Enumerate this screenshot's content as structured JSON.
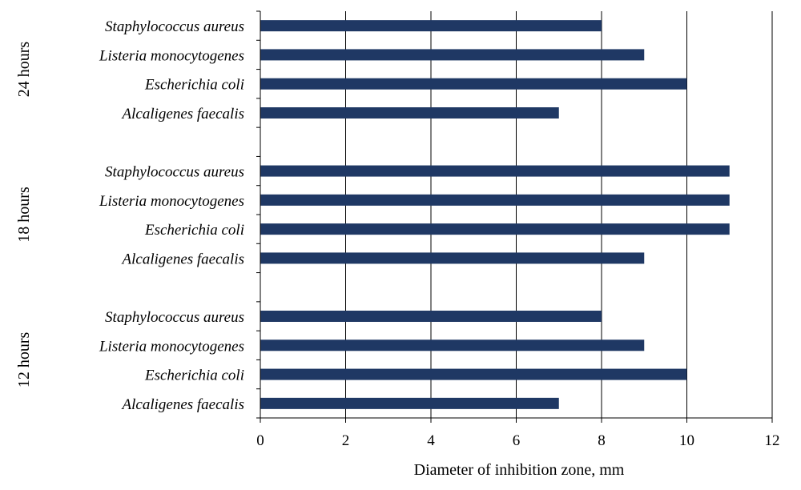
{
  "chart_data": {
    "type": "bar",
    "orientation": "horizontal",
    "xlabel": "Diameter of inhibition zone, mm",
    "xlim": [
      0,
      12
    ],
    "xticks": [
      0,
      2,
      4,
      6,
      8,
      10,
      12
    ],
    "grid": "vertical",
    "bar_color": "#1f3864",
    "groups": [
      {
        "label": "24 hours",
        "categories": [
          "Staphylococcus aureus",
          "Listeria monocytogenes",
          "Escherichia coli",
          "Alcaligenes faecalis"
        ],
        "values": [
          8,
          9,
          10,
          7
        ]
      },
      {
        "label": "18 hours",
        "categories": [
          "Staphylococcus aureus",
          "Listeria monocytogenes",
          "Escherichia coli",
          "Alcaligenes faecalis"
        ],
        "values": [
          11,
          11,
          11,
          9
        ]
      },
      {
        "label": "12 hours",
        "categories": [
          "Staphylococcus aureus",
          "Listeria monocytogenes",
          "Escherichia coli",
          "Alcaligenes faecalis"
        ],
        "values": [
          8,
          9,
          10,
          7
        ]
      }
    ]
  }
}
